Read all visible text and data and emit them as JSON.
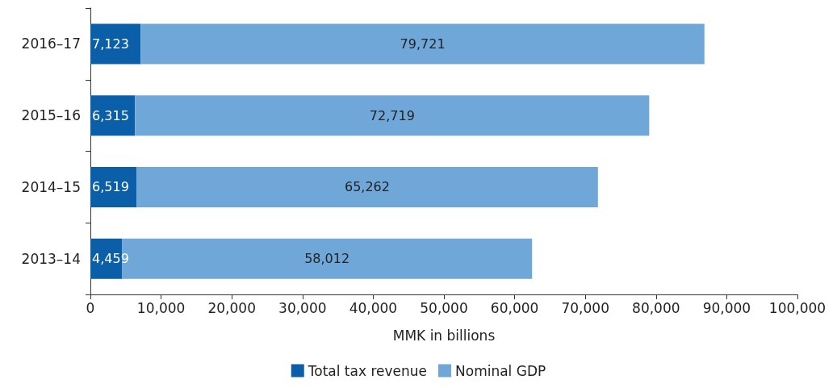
{
  "chart_data": {
    "type": "bar",
    "orientation": "horizontal",
    "stacked": true,
    "xlabel": "MMK in billions",
    "categories": [
      "2016–17",
      "2015–16",
      "2014–15",
      "2013–14"
    ],
    "series": [
      {
        "name": "Total tax revenue",
        "color": "#0b5ea8",
        "values": [
          7123,
          6315,
          6519,
          4459
        ],
        "value_labels": [
          "7,123",
          "6,315",
          "6,519",
          "4,459"
        ]
      },
      {
        "name": "Nominal GDP",
        "color": "#70a7d9",
        "values": [
          79721,
          72719,
          65262,
          58012
        ],
        "value_labels": [
          "79,721",
          "72,719",
          "65,262",
          "58,012"
        ]
      }
    ],
    "xlim": [
      0,
      100000
    ],
    "xticks": [
      0,
      {
        "value": 10000,
        "label": "10,000"
      },
      {
        "value": 20000,
        "label": "20,000"
      },
      {
        "value": 30000,
        "label": "30,000"
      },
      {
        "value": 40000,
        "label": "40,000"
      },
      {
        "value": 50000,
        "label": "50,000"
      },
      {
        "value": 60000,
        "label": "60,000"
      },
      {
        "value": 70000,
        "label": "70,000"
      },
      {
        "value": 80000,
        "label": "80,000"
      },
      {
        "value": 90000,
        "label": "90,000"
      },
      {
        "value": 100000,
        "label": "100,000"
      }
    ],
    "grid": false,
    "legend": "bottom"
  }
}
